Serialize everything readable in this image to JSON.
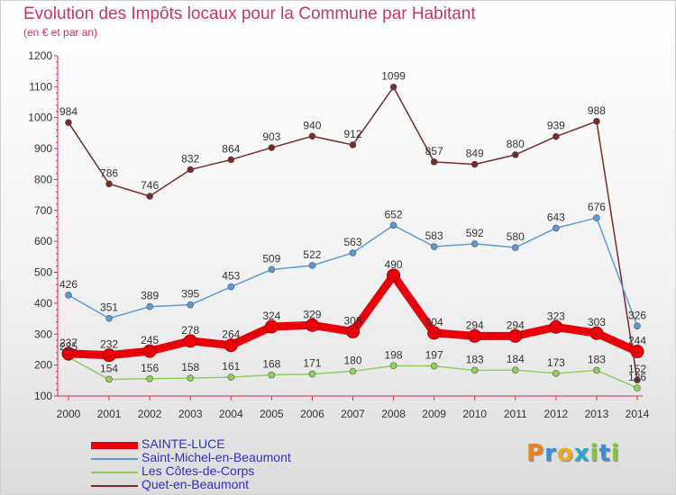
{
  "title": "Evolution des Impôts locaux pour la Commune par Habitant",
  "subtitle": "(en € et par an)",
  "colors": {
    "title": "#c9336b",
    "axis": "#d9304f",
    "label": "#333333",
    "legend_text": "#3030c0"
  },
  "logo": {
    "letters": [
      "P",
      "r",
      "o",
      "x",
      "i",
      "t",
      "i"
    ],
    "colors": [
      "#f0801e",
      "#3a8fd6",
      "#f0a81e",
      "#2aa7c9",
      "#86c440",
      "#3a8fd6",
      "#86c440"
    ]
  },
  "chart_data": {
    "type": "line",
    "x": [
      2000,
      2001,
      2002,
      2003,
      2004,
      2005,
      2006,
      2007,
      2008,
      2009,
      2010,
      2011,
      2012,
      2013,
      2014
    ],
    "ylim": [
      100,
      1200
    ],
    "yticks": [
      100,
      200,
      300,
      400,
      500,
      600,
      700,
      800,
      900,
      1000,
      1100,
      1200
    ],
    "grid": false,
    "legend_position": "bottom-left",
    "series": [
      {
        "name": "SAINTE-LUCE",
        "color": "#e8000b",
        "values": [
          237,
          232,
          245,
          278,
          264,
          324,
          329,
          308,
          490,
          304,
          294,
          294,
          323,
          303,
          244
        ],
        "labels": [
          "237",
          "232",
          "245",
          "278",
          "264",
          "324",
          "329",
          "308",
          "490",
          "304",
          "294",
          "294",
          "323",
          "303",
          "244"
        ]
      },
      {
        "name": "Saint-Michel-en-Beaumont",
        "color": "#5b9ad6",
        "values": [
          426,
          351,
          389,
          395,
          453,
          509,
          522,
          563,
          652,
          583,
          592,
          580,
          643,
          676,
          326
        ],
        "labels": [
          "426",
          "351",
          "389",
          "395",
          "453",
          "509",
          "522",
          "563",
          "652",
          "583",
          "592",
          "580",
          "643",
          "676",
          "326"
        ]
      },
      {
        "name": "Les Côtes-de-Corps",
        "color": "#8fd05a",
        "values": [
          225,
          154,
          156,
          158,
          161,
          168,
          171,
          180,
          198,
          197,
          183,
          184,
          173,
          183,
          126
        ],
        "labels": [
          "225",
          "154",
          "156",
          "158",
          "161",
          "168",
          "171",
          "180",
          "198",
          "197",
          "183",
          "184",
          "173",
          "183",
          "126"
        ]
      },
      {
        "name": "Quet-en-Beaumont",
        "color": "#7a2a2a",
        "values": [
          984,
          786,
          746,
          832,
          864,
          903,
          940,
          912,
          1099,
          857,
          849,
          880,
          939,
          988,
          152
        ],
        "labels": [
          "984",
          "786",
          "746",
          "832",
          "864",
          "903",
          "940",
          "912",
          "1099",
          "857",
          "849",
          "880",
          "939",
          "988",
          "152"
        ]
      }
    ]
  }
}
